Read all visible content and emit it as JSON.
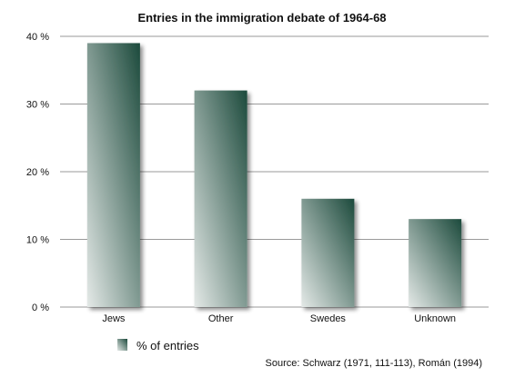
{
  "chart_data": {
    "type": "bar",
    "title": "Entries in the immigration debate of 1964-68",
    "xlabel": "",
    "ylabel": "",
    "categories": [
      "Jews",
      "Other",
      "Swedes",
      "Unknown"
    ],
    "series": [
      {
        "name": "% of entries",
        "values": [
          39,
          32,
          16,
          13
        ]
      }
    ],
    "ylim": [
      0,
      40
    ],
    "yticks": [
      0,
      10,
      20,
      30,
      40
    ],
    "ytick_labels": [
      "0 %",
      "10 %",
      "20 %",
      "30 %",
      "40 %"
    ],
    "grid": true,
    "legend_position": "bottom-left",
    "source_note": "Source: Schwarz (1971, 111-113), Román (1994)",
    "colors": {
      "bar_top": "#1c4a3c",
      "bar_bottom": "#e4e9e7",
      "grid": "#9a9a9a"
    }
  }
}
